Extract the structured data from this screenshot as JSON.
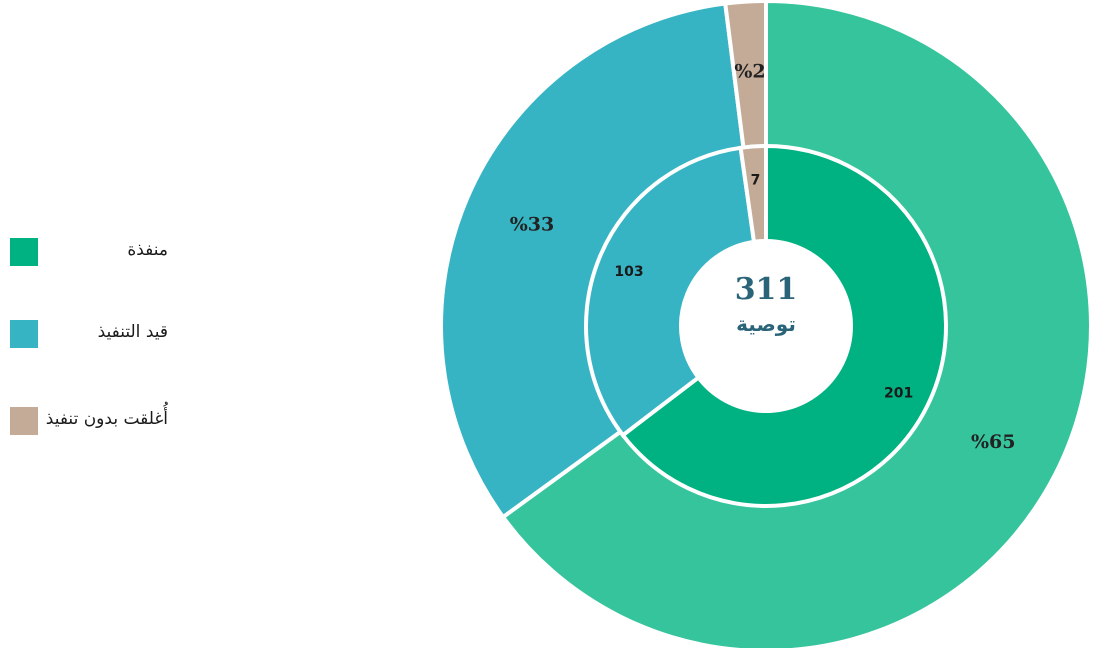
{
  "colors": {
    "outer": [
      "#36c49c",
      "#37b4c4",
      "#c4ab98"
    ],
    "inner": [
      "#00b281",
      "#37b4c4",
      "#c4ab98"
    ],
    "center_text": "#2a6478"
  },
  "legend": {
    "items": [
      {
        "label": "منفذة",
        "color": "#00b281"
      },
      {
        "label": "قيد التنفيذ",
        "color": "#37b4c4"
      },
      {
        "label": "أُغلقت بدون تنفيذ",
        "color": "#c4ab98"
      }
    ]
  },
  "center": {
    "total": "311",
    "caption": "توصية"
  },
  "chart_data": {
    "type": "pie",
    "subtype": "nested-donut",
    "categories": [
      "منفذة",
      "قيد التنفيذ",
      "أُغلقت بدون تنفيذ"
    ],
    "series": [
      {
        "ring": "inner",
        "values": [
          201,
          103,
          7
        ],
        "labels": [
          "201",
          "103",
          "7"
        ]
      },
      {
        "ring": "outer",
        "values": [
          65,
          33,
          2
        ],
        "labels": [
          "%65",
          "%33",
          "%2"
        ]
      }
    ],
    "total": 311,
    "legend_position": "left"
  }
}
